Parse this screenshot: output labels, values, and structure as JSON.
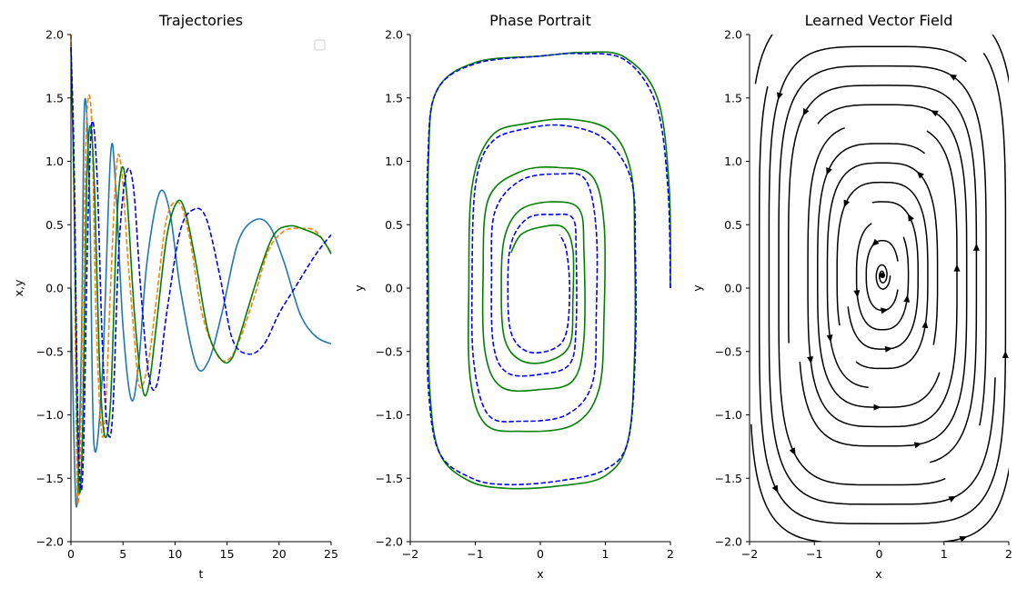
{
  "chart_data": [
    {
      "type": "line",
      "title": "Trajectories",
      "xlabel": "t",
      "ylabel": "x,y",
      "xlim": [
        0,
        25
      ],
      "ylim": [
        -2.0,
        2.0
      ],
      "xticks": [
        "0",
        "5",
        "10",
        "15",
        "20",
        "25"
      ],
      "yticks": [
        "-2.0",
        "-1.5",
        "-1.0",
        "-0.5",
        "0.0",
        "0.5",
        "1.0",
        "1.5",
        "2.0"
      ],
      "legend": "top-right (empty)",
      "series": [
        {
          "color": "#1f77b4",
          "dash": "solid",
          "points": [
            [
              0,
              0.0
            ],
            [
              0.5,
              -1.72
            ],
            [
              1.0,
              -0.5
            ],
            [
              1.3,
              1.45
            ],
            [
              1.8,
              0.7
            ],
            [
              2.2,
              -1.22
            ],
            [
              3.0,
              -0.7
            ],
            [
              3.8,
              1.04
            ],
            [
              4.3,
              0.8
            ],
            [
              5.0,
              -0.3
            ],
            [
              5.8,
              -0.88
            ],
            [
              6.5,
              -0.6
            ],
            [
              7.3,
              0.2
            ],
            [
              8.5,
              0.75
            ],
            [
              9.5,
              0.6
            ],
            [
              10.5,
              0.0
            ],
            [
              12,
              -0.6
            ],
            [
              13.2,
              -0.58
            ],
            [
              14.5,
              -0.2
            ],
            [
              16,
              0.35
            ],
            [
              17.5,
              0.53
            ],
            [
              19,
              0.5
            ],
            [
              20.5,
              0.2
            ],
            [
              22,
              -0.2
            ],
            [
              23.5,
              -0.38
            ],
            [
              25,
              -0.44
            ]
          ]
        },
        {
          "color": "#ff7f0e",
          "dash": "dashed",
          "points": [
            [
              0,
              2.0
            ],
            [
              0.3,
              0.6
            ],
            [
              0.5,
              -1.0
            ],
            [
              0.65,
              -1.7
            ],
            [
              0.9,
              -1.3
            ],
            [
              1.2,
              0.2
            ],
            [
              1.55,
              1.4
            ],
            [
              2.0,
              1.3
            ],
            [
              2.4,
              -0.2
            ],
            [
              2.9,
              -1.1
            ],
            [
              3.3,
              -1.0
            ],
            [
              3.8,
              0.0
            ],
            [
              4.4,
              0.98
            ],
            [
              4.9,
              0.9
            ],
            [
              5.5,
              0.2
            ],
            [
              6.1,
              -0.4
            ],
            [
              6.6,
              -0.78
            ],
            [
              7.4,
              -0.6
            ],
            [
              8.2,
              -0.1
            ],
            [
              9.2,
              0.55
            ],
            [
              10.4,
              0.67
            ],
            [
              11.4,
              0.4
            ],
            [
              12.6,
              -0.2
            ],
            [
              14,
              -0.52
            ],
            [
              15,
              -0.57
            ],
            [
              16,
              -0.45
            ],
            [
              17.5,
              -0.1
            ],
            [
              19,
              0.3
            ],
            [
              20.5,
              0.45
            ],
            [
              22,
              0.47
            ],
            [
              23.5,
              0.45
            ],
            [
              25,
              0.28
            ]
          ]
        },
        {
          "color": "#008000",
          "dash": "solid",
          "points": [
            [
              0,
              1.9
            ],
            [
              0.3,
              0.8
            ],
            [
              0.6,
              -1.0
            ],
            [
              0.85,
              -1.62
            ],
            [
              1.15,
              -1.0
            ],
            [
              1.5,
              0.8
            ],
            [
              1.9,
              1.28
            ],
            [
              2.3,
              0.7
            ],
            [
              2.7,
              -0.5
            ],
            [
              3.2,
              -1.15
            ],
            [
              3.8,
              -0.9
            ],
            [
              4.4,
              0.5
            ],
            [
              4.9,
              0.95
            ],
            [
              5.4,
              0.7
            ],
            [
              6.1,
              -0.2
            ],
            [
              6.9,
              -0.8
            ],
            [
              7.5,
              -0.76
            ],
            [
              8.2,
              -0.3
            ],
            [
              9.2,
              0.4
            ],
            [
              10.2,
              0.68
            ],
            [
              11.0,
              0.6
            ],
            [
              12,
              0.2
            ],
            [
              13.2,
              -0.35
            ],
            [
              14.5,
              -0.57
            ],
            [
              15.5,
              -0.55
            ],
            [
              16.5,
              -0.3
            ],
            [
              18,
              0.1
            ],
            [
              19.5,
              0.42
            ],
            [
              21,
              0.49
            ],
            [
              22.5,
              0.46
            ],
            [
              24,
              0.4
            ],
            [
              25,
              0.27
            ]
          ]
        },
        {
          "color": "#0000ff",
          "dash": "dashed",
          "points": [
            [
              0,
              1.9
            ],
            [
              0.3,
              1.0
            ],
            [
              0.6,
              -0.8
            ],
            [
              0.9,
              -1.55
            ],
            [
              1.2,
              -1.3
            ],
            [
              1.6,
              0.4
            ],
            [
              2.0,
              1.3
            ],
            [
              2.5,
              0.9
            ],
            [
              3.0,
              -0.4
            ],
            [
              3.5,
              -1.1
            ],
            [
              4.0,
              -1.0
            ],
            [
              4.6,
              0.3
            ],
            [
              5.3,
              0.9
            ],
            [
              6.0,
              0.8
            ],
            [
              6.7,
              0.0
            ],
            [
              7.5,
              -0.7
            ],
            [
              8.3,
              -0.75
            ],
            [
              9.2,
              -0.2
            ],
            [
              10.5,
              0.45
            ],
            [
              11.8,
              0.62
            ],
            [
              13,
              0.55
            ],
            [
              14.3,
              0.1
            ],
            [
              15.5,
              -0.4
            ],
            [
              17,
              -0.52
            ],
            [
              18.5,
              -0.45
            ],
            [
              20,
              -0.2
            ],
            [
              21.5,
              0.0
            ],
            [
              23,
              0.2
            ],
            [
              24,
              0.32
            ],
            [
              25,
              0.42
            ]
          ]
        }
      ]
    },
    {
      "type": "line",
      "title": "Phase Portrait",
      "xlabel": "x",
      "ylabel": "y",
      "xlim": [
        -2,
        2
      ],
      "ylim": [
        -2.0,
        2.0
      ],
      "xticks": [
        "-2",
        "-1",
        "0",
        "1",
        "2"
      ],
      "yticks": [
        "-2.0",
        "-1.5",
        "-1.0",
        "-0.5",
        "0.0",
        "0.5",
        "1.0",
        "1.5",
        "2.0"
      ],
      "series": [
        {
          "color": "#008000",
          "dash": "solid",
          "points": [
            [
              2.0,
              0.0
            ],
            [
              1.98,
              0.8
            ],
            [
              1.8,
              1.5
            ],
            [
              1.3,
              1.82
            ],
            [
              0.7,
              1.86
            ],
            [
              0.0,
              1.83
            ],
            [
              -1.0,
              1.78
            ],
            [
              -1.6,
              1.55
            ],
            [
              -1.72,
              1.0
            ],
            [
              -1.72,
              0.0
            ],
            [
              -1.7,
              -0.8
            ],
            [
              -1.55,
              -1.3
            ],
            [
              -1.1,
              -1.52
            ],
            [
              -0.5,
              -1.58
            ],
            [
              0.3,
              -1.56
            ],
            [
              1.0,
              -1.48
            ],
            [
              1.35,
              -1.2
            ],
            [
              1.45,
              -0.5
            ],
            [
              1.45,
              0.3
            ],
            [
              1.4,
              0.9
            ],
            [
              1.1,
              1.23
            ],
            [
              0.5,
              1.33
            ],
            [
              -0.2,
              1.3
            ],
            [
              -0.75,
              1.2
            ],
            [
              -1.05,
              0.8
            ],
            [
              -1.1,
              0.0
            ],
            [
              -1.08,
              -0.7
            ],
            [
              -0.85,
              -1.07
            ],
            [
              -0.3,
              -1.13
            ],
            [
              0.5,
              -1.08
            ],
            [
              0.9,
              -0.8
            ],
            [
              0.98,
              -0.2
            ],
            [
              0.98,
              0.5
            ],
            [
              0.8,
              0.88
            ],
            [
              0.3,
              0.95
            ],
            [
              -0.3,
              0.92
            ],
            [
              -0.8,
              0.7
            ],
            [
              -0.88,
              0.1
            ],
            [
              -0.85,
              -0.5
            ],
            [
              -0.6,
              -0.78
            ],
            [
              0.0,
              -0.8
            ],
            [
              0.5,
              -0.73
            ],
            [
              0.67,
              -0.4
            ],
            [
              0.67,
              0.3
            ],
            [
              0.6,
              0.62
            ],
            [
              0.2,
              0.68
            ],
            [
              -0.3,
              0.62
            ],
            [
              -0.55,
              0.4
            ],
            [
              -0.6,
              0.0
            ],
            [
              -0.55,
              -0.4
            ],
            [
              -0.3,
              -0.57
            ],
            [
              0.1,
              -0.58
            ],
            [
              0.45,
              -0.45
            ],
            [
              0.5,
              -0.1
            ],
            [
              0.5,
              0.3
            ],
            [
              0.35,
              0.48
            ],
            [
              0.0,
              0.48
            ],
            [
              -0.3,
              0.42
            ],
            [
              -0.45,
              0.28
            ]
          ]
        },
        {
          "color": "#0000ff",
          "dash": "dashed",
          "points": [
            [
              2.0,
              0.0
            ],
            [
              1.96,
              0.8
            ],
            [
              1.78,
              1.45
            ],
            [
              1.3,
              1.8
            ],
            [
              0.6,
              1.85
            ],
            [
              0.0,
              1.83
            ],
            [
              -1.0,
              1.77
            ],
            [
              -1.6,
              1.55
            ],
            [
              -1.73,
              1.0
            ],
            [
              -1.74,
              0.0
            ],
            [
              -1.72,
              -0.8
            ],
            [
              -1.55,
              -1.3
            ],
            [
              -1.05,
              -1.5
            ],
            [
              -0.5,
              -1.55
            ],
            [
              0.3,
              -1.52
            ],
            [
              1.0,
              -1.43
            ],
            [
              1.35,
              -1.2
            ],
            [
              1.46,
              -0.5
            ],
            [
              1.46,
              0.3
            ],
            [
              1.4,
              0.85
            ],
            [
              1.0,
              1.17
            ],
            [
              0.4,
              1.28
            ],
            [
              -0.2,
              1.26
            ],
            [
              -0.75,
              1.15
            ],
            [
              -1.0,
              0.8
            ],
            [
              -1.05,
              0.0
            ],
            [
              -1.02,
              -0.6
            ],
            [
              -0.8,
              -1.0
            ],
            [
              -0.3,
              -1.05
            ],
            [
              0.4,
              -1.0
            ],
            [
              0.8,
              -0.75
            ],
            [
              0.86,
              -0.2
            ],
            [
              0.86,
              0.45
            ],
            [
              0.7,
              0.85
            ],
            [
              0.3,
              0.9
            ],
            [
              -0.3,
              0.85
            ],
            [
              -0.7,
              0.6
            ],
            [
              -0.75,
              0.1
            ],
            [
              -0.72,
              -0.45
            ],
            [
              -0.5,
              -0.67
            ],
            [
              0.0,
              -0.68
            ],
            [
              0.45,
              -0.6
            ],
            [
              0.55,
              -0.3
            ],
            [
              0.55,
              0.3
            ],
            [
              0.5,
              0.55
            ],
            [
              0.2,
              0.58
            ],
            [
              -0.2,
              0.55
            ],
            [
              -0.45,
              0.35
            ],
            [
              -0.5,
              0.0
            ],
            [
              -0.45,
              -0.35
            ],
            [
              -0.2,
              -0.5
            ],
            [
              0.2,
              -0.48
            ],
            [
              0.4,
              -0.35
            ],
            [
              0.45,
              0.0
            ],
            [
              0.4,
              0.3
            ],
            [
              0.3,
              0.42
            ]
          ]
        }
      ]
    },
    {
      "type": "streamplot",
      "title": "Learned Vector Field",
      "xlabel": "x",
      "ylabel": "y",
      "xlim": [
        -2,
        2
      ],
      "ylim": [
        -2.0,
        2.0
      ],
      "xticks": [
        "-2",
        "-1",
        "0",
        "1",
        "2"
      ],
      "yticks": [
        "-2.0",
        "-1.5",
        "-1.0",
        "-0.5",
        "0.0",
        "0.5",
        "1.0",
        "1.5",
        "2.0"
      ],
      "color": "#000000",
      "direction": "counterclockwise",
      "center": [
        0.05,
        0.1
      ]
    }
  ]
}
